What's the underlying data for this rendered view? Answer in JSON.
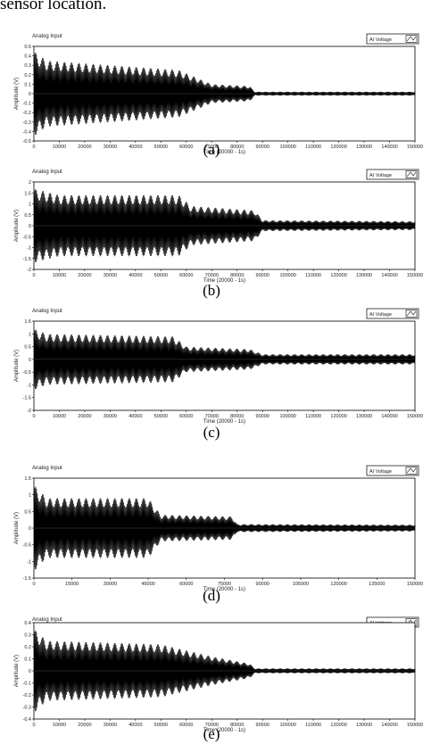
{
  "header": {
    "text": "sensor location."
  },
  "panels": [
    {
      "id": "a",
      "caption": "(a)",
      "title": "Analog Input",
      "legend": "AI Voltage",
      "xlabel": "Time (20000 - 1s)",
      "ylabel": "Amplitude (V)",
      "yticks": [
        "0.5",
        "0.4",
        "0.3",
        "0.2",
        "0.1",
        "0",
        "-0.1",
        "-0.2",
        "-0.3",
        "-0.4",
        "-0.5"
      ],
      "xticks": [
        "0",
        "10000",
        "20000",
        "30000",
        "40000",
        "50000",
        "60000",
        "70000",
        "80000",
        "90000",
        "100000",
        "110000",
        "120000",
        "130000",
        "140000",
        "150000"
      ]
    },
    {
      "id": "b",
      "caption": "(b)",
      "title": "Analog Input",
      "legend": "AI Voltage",
      "xlabel": "Time (20000 - 1s)",
      "ylabel": "Amplitude (V)",
      "yticks": [
        "2",
        "1.5",
        "1",
        "0.5",
        "0",
        "-0.5",
        "-1",
        "-1.5",
        "-2"
      ],
      "xticks": [
        "0",
        "10000",
        "20000",
        "30000",
        "40000",
        "50000",
        "60000",
        "70000",
        "80000",
        "90000",
        "100000",
        "110000",
        "120000",
        "130000",
        "140000",
        "150000"
      ]
    },
    {
      "id": "c",
      "caption": "(c)",
      "title": "Analog Input",
      "legend": "AI Voltage",
      "xlabel": "Time (20000 - 1s)",
      "ylabel": "Amplitude (V)",
      "yticks": [
        "1.5",
        "1",
        "0.5",
        "0",
        "-0.5",
        "-1",
        "-1.5",
        "-2"
      ],
      "xticks": [
        "0",
        "10000",
        "20000",
        "30000",
        "40000",
        "50000",
        "60000",
        "70000",
        "80000",
        "90000",
        "100000",
        "110000",
        "120000",
        "130000",
        "140000",
        "150000"
      ]
    },
    {
      "id": "d",
      "caption": "(d)",
      "title": "Analog Input",
      "legend": "AI Voltage",
      "xlabel": "Time (20000 - 1s)",
      "ylabel": "Amplitude (V)",
      "yticks": [
        "1.5",
        "1",
        "0.5",
        "0",
        "-0.5",
        "-1",
        "-1.5"
      ],
      "xticks": [
        "0",
        "15000",
        "30000",
        "45000",
        "60000",
        "75000",
        "90000",
        "105000",
        "120000",
        "135000",
        "150000"
      ]
    },
    {
      "id": "e",
      "caption": "(e)",
      "title": "Analog Input",
      "legend": "AI Voltage",
      "xlabel": "Time (20000 - 1s)",
      "ylabel": "Amplitude (V)",
      "yticks": [
        "0.4",
        "0.3",
        "0.2",
        "0.1",
        "0",
        "-0.1",
        "-0.2",
        "-0.3",
        "-0.4"
      ],
      "xticks": [
        "0",
        "10000",
        "20000",
        "30000",
        "40000",
        "50000",
        "60000",
        "70000",
        "80000",
        "90000",
        "100000",
        "110000",
        "120000",
        "130000",
        "140000",
        "150000"
      ]
    }
  ],
  "chart_data": [
    {
      "type": "line",
      "title": "Analog Input",
      "xlabel": "Time (20000 - 1s)",
      "ylabel": "Amplitude (V)",
      "xlim": [
        0,
        150000
      ],
      "ylim": [
        -0.5,
        0.5
      ],
      "legend": "top-right",
      "series": [
        {
          "name": "AI Voltage",
          "color": "#000000",
          "envelope": [
            {
              "x": 0,
              "amp": 0.45
            },
            {
              "x": 5000,
              "amp": 0.35
            },
            {
              "x": 57000,
              "amp": 0.25
            },
            {
              "x": 70000,
              "amp": 0.1
            },
            {
              "x": 85000,
              "amp": 0.08
            },
            {
              "x": 87000,
              "amp": 0.02
            },
            {
              "x": 150000,
              "amp": 0.02
            }
          ]
        }
      ]
    },
    {
      "type": "line",
      "title": "Analog Input",
      "xlabel": "Time (20000 - 1s)",
      "ylabel": "Amplitude (V)",
      "xlim": [
        0,
        150000
      ],
      "ylim": [
        -2,
        2
      ],
      "legend": "top-right",
      "series": [
        {
          "name": "AI Voltage",
          "color": "#000000",
          "envelope": [
            {
              "x": 0,
              "amp": 1.7
            },
            {
              "x": 10000,
              "amp": 1.4
            },
            {
              "x": 57000,
              "amp": 1.4
            },
            {
              "x": 62000,
              "amp": 0.9
            },
            {
              "x": 87000,
              "amp": 0.7
            },
            {
              "x": 90000,
              "amp": 0.25
            },
            {
              "x": 150000,
              "amp": 0.2
            }
          ]
        }
      ]
    },
    {
      "type": "line",
      "title": "Analog Input",
      "xlabel": "Time (20000 - 1s)",
      "ylabel": "Amplitude (V)",
      "xlim": [
        0,
        150000
      ],
      "ylim": [
        -2,
        1.5
      ],
      "legend": "top-right",
      "series": [
        {
          "name": "AI Voltage",
          "color": "#000000",
          "envelope": [
            {
              "x": 0,
              "amp": 1.2
            },
            {
              "x": 5000,
              "amp": 1.0
            },
            {
              "x": 55000,
              "amp": 0.9
            },
            {
              "x": 60000,
              "amp": 0.5
            },
            {
              "x": 85000,
              "amp": 0.4
            },
            {
              "x": 90000,
              "amp": 0.2
            },
            {
              "x": 150000,
              "amp": 0.2
            }
          ]
        }
      ]
    },
    {
      "type": "line",
      "title": "Analog Input",
      "xlabel": "Time (20000 - 1s)",
      "ylabel": "Amplitude (V)",
      "xlim": [
        0,
        150000
      ],
      "ylim": [
        -1.5,
        1.5
      ],
      "legend": "top-right",
      "series": [
        {
          "name": "AI Voltage",
          "color": "#000000",
          "envelope": [
            {
              "x": 0,
              "amp": 1.3
            },
            {
              "x": 5000,
              "amp": 0.9
            },
            {
              "x": 45000,
              "amp": 0.9
            },
            {
              "x": 50000,
              "amp": 0.4
            },
            {
              "x": 78000,
              "amp": 0.35
            },
            {
              "x": 80000,
              "amp": 0.12
            },
            {
              "x": 150000,
              "amp": 0.1
            }
          ]
        }
      ]
    },
    {
      "type": "line",
      "title": "Analog Input",
      "xlabel": "Time (20000 - 1s)",
      "ylabel": "Amplitude (V)",
      "xlim": [
        0,
        150000
      ],
      "ylim": [
        -0.4,
        0.4
      ],
      "legend": "top-right",
      "series": [
        {
          "name": "AI Voltage",
          "color": "#000000",
          "envelope": [
            {
              "x": 0,
              "amp": 0.35
            },
            {
              "x": 5000,
              "amp": 0.25
            },
            {
              "x": 50000,
              "amp": 0.22
            },
            {
              "x": 70000,
              "amp": 0.12
            },
            {
              "x": 85000,
              "amp": 0.06
            },
            {
              "x": 87000,
              "amp": 0.02
            },
            {
              "x": 150000,
              "amp": 0.02
            }
          ]
        }
      ]
    }
  ]
}
